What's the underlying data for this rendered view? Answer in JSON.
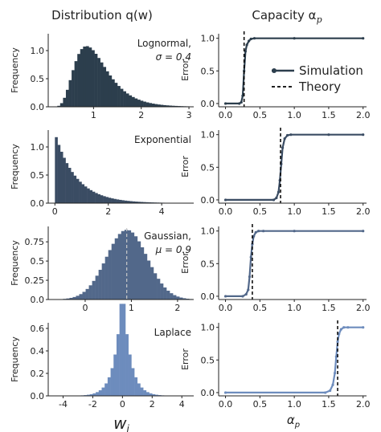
{
  "headers": {
    "left": "Distribution q(w)",
    "right": "Capacity α",
    "right_sub": "p"
  },
  "xlabels": {
    "left": "w",
    "left_sub": "i",
    "right": "α",
    "right_sub": "p"
  },
  "legend": {
    "simulation": "Simulation",
    "theory": "Theory"
  },
  "colors": {
    "lognormal": "#2c3e4d",
    "exponential": "#3a4c63",
    "gaussian": "#52688a",
    "laplace": "#6d8cbd",
    "theory": "#000000",
    "mean_line": "#c9c9c9"
  },
  "chart_data": [
    {
      "type": "histogram",
      "panel": "lognormal",
      "annotation": [
        "Lognormal,",
        "σ = 0.4"
      ],
      "ylabel": "Frequency",
      "xlim": [
        0.05,
        3.1
      ],
      "ylim": [
        0,
        1.3
      ],
      "xticks": [
        1,
        2,
        3
      ],
      "yticks": [
        0.0,
        0.5,
        1.0
      ],
      "bin_width": 0.06,
      "dist": {
        "kind": "lognormal",
        "mu": 0.0,
        "sigma": 0.4,
        "xmin": 0.18,
        "xmax": 3.0
      }
    },
    {
      "type": "histogram",
      "panel": "exponential",
      "annotation": [
        "Exponential"
      ],
      "ylabel": "Frequency",
      "xlim": [
        -0.25,
        5.2
      ],
      "ylim": [
        0,
        1.3
      ],
      "xticks": [
        0,
        2,
        4
      ],
      "yticks": [
        0.0,
        0.5,
        1.0
      ],
      "bin_width": 0.1,
      "dist": {
        "kind": "exponential",
        "rate": 1.25,
        "xmin": 0.0,
        "xmax": 4.6
      }
    },
    {
      "type": "histogram",
      "panel": "gaussian",
      "annotation": [
        "Gaussian,",
        "μ = 0.9"
      ],
      "ylabel": "Frequency",
      "xlim": [
        -0.8,
        2.35
      ],
      "ylim": [
        0,
        0.95
      ],
      "xticks": [
        0,
        1,
        2
      ],
      "yticks": [
        0.0,
        0.25,
        0.5,
        0.75
      ],
      "bin_width": 0.07,
      "mean_line": 0.9,
      "dist": {
        "kind": "gaussian",
        "mu": 0.9,
        "sd": 0.44,
        "xmin": -0.62,
        "xmax": 2.3
      }
    },
    {
      "type": "histogram",
      "panel": "laplace",
      "annotation": [
        "Laplace"
      ],
      "ylabel": "Frequency",
      "xlim": [
        -5.0,
        4.8
      ],
      "ylim": [
        0,
        0.65
      ],
      "xticks": [
        -4,
        -2,
        0,
        2,
        4
      ],
      "yticks": [
        0.0,
        0.2,
        0.4,
        0.6
      ],
      "bin_width": 0.2,
      "dist": {
        "kind": "laplace",
        "mu": 0.0,
        "b": 0.5,
        "xmin": -4.2,
        "xmax": 4.2
      }
    },
    {
      "type": "line",
      "panel": "lognormal-capacity",
      "ylabel": "Error",
      "xlim": [
        -0.1,
        2.05
      ],
      "ylim": [
        -0.05,
        1.07
      ],
      "xticks": [
        0.0,
        0.5,
        1.0,
        1.5,
        2.0
      ],
      "yticks": [
        0.0,
        0.5,
        1.0
      ],
      "theory": 0.27,
      "series": [
        {
          "name": "Simulation",
          "x": [
            0.0,
            0.2,
            0.23,
            0.25,
            0.27,
            0.29,
            0.31,
            0.34,
            0.37,
            0.42,
            1.0,
            2.0
          ],
          "y": [
            0.0,
            0.0,
            0.02,
            0.12,
            0.5,
            0.8,
            0.9,
            0.96,
            0.99,
            1.0,
            1.0,
            1.0
          ]
        }
      ]
    },
    {
      "type": "line",
      "panel": "exponential-capacity",
      "ylabel": "Error",
      "xlim": [
        -0.1,
        2.05
      ],
      "ylim": [
        -0.05,
        1.07
      ],
      "xticks": [
        0.0,
        0.5,
        1.0,
        1.5,
        2.0
      ],
      "yticks": [
        0.0,
        0.5,
        1.0
      ],
      "theory": 0.8,
      "series": [
        {
          "name": "Simulation",
          "x": [
            0.0,
            0.7,
            0.74,
            0.77,
            0.79,
            0.81,
            0.83,
            0.86,
            0.9,
            0.95,
            1.5,
            2.0
          ],
          "y": [
            0.0,
            0.0,
            0.03,
            0.12,
            0.3,
            0.55,
            0.8,
            0.94,
            0.99,
            1.0,
            1.0,
            1.0
          ]
        }
      ]
    },
    {
      "type": "line",
      "panel": "gaussian-capacity",
      "ylabel": "Error",
      "xlim": [
        -0.1,
        2.05
      ],
      "ylim": [
        -0.05,
        1.07
      ],
      "xticks": [
        0.0,
        0.5,
        1.0,
        1.5,
        2.0
      ],
      "yticks": [
        0.0,
        0.5,
        1.0
      ],
      "theory": 0.39,
      "series": [
        {
          "name": "Simulation",
          "x": [
            0.0,
            0.25,
            0.3,
            0.33,
            0.35,
            0.37,
            0.39,
            0.41,
            0.44,
            0.48,
            0.55,
            1.0,
            2.0
          ],
          "y": [
            0.0,
            0.0,
            0.03,
            0.1,
            0.3,
            0.6,
            0.8,
            0.92,
            0.98,
            1.0,
            1.0,
            1.0,
            1.0
          ]
        }
      ]
    },
    {
      "type": "line",
      "panel": "laplace-capacity",
      "ylabel": "Error",
      "xlim": [
        -0.1,
        2.05
      ],
      "ylim": [
        -0.05,
        1.07
      ],
      "xticks": [
        0.0,
        0.5,
        1.0,
        1.5,
        2.0
      ],
      "yticks": [
        0.0,
        0.5,
        1.0
      ],
      "theory": 1.63,
      "series": [
        {
          "name": "Simulation",
          "x": [
            0.0,
            1.45,
            1.52,
            1.56,
            1.59,
            1.61,
            1.63,
            1.65,
            1.68,
            1.72,
            1.78,
            2.0
          ],
          "y": [
            0.0,
            0.0,
            0.03,
            0.12,
            0.3,
            0.55,
            0.78,
            0.9,
            0.97,
            1.0,
            1.0,
            1.0
          ]
        }
      ]
    }
  ]
}
